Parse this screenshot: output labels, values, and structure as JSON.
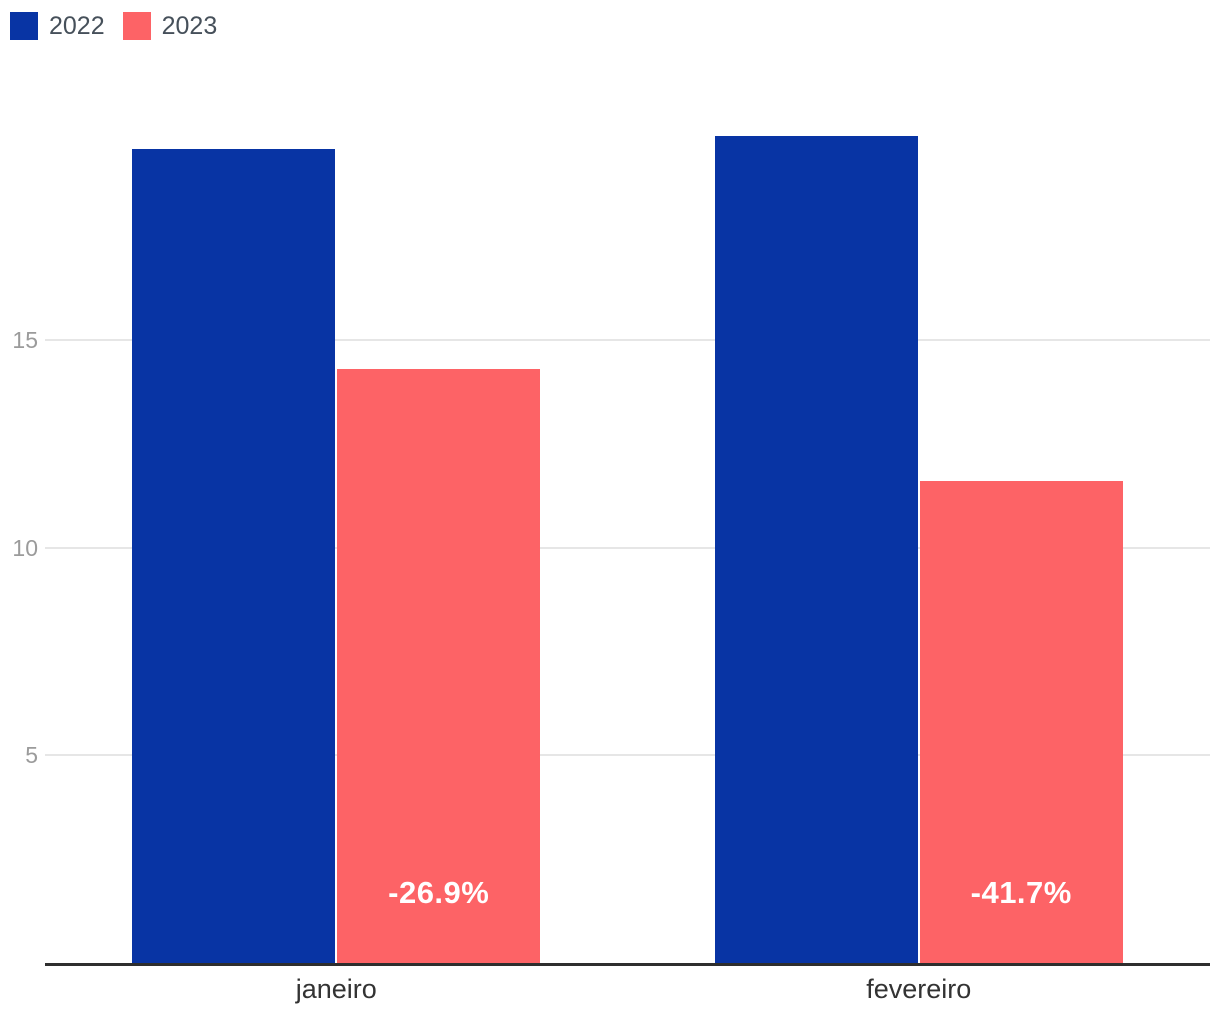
{
  "chart_data": {
    "type": "bar",
    "title": "",
    "xlabel": "",
    "ylabel": "",
    "categories": [
      "janeiro",
      "fevereiro"
    ],
    "series": [
      {
        "name": "2022",
        "color": "#0834a4",
        "values": [
          19.6,
          19.9
        ]
      },
      {
        "name": "2023",
        "color": "#fd6366",
        "values": [
          14.3,
          11.6
        ],
        "bar_labels": [
          "-26.9%",
          "-41.7%"
        ]
      }
    ],
    "yticks": [
      5,
      10,
      15
    ],
    "ylim": [
      0,
      20.1
    ],
    "grid": true,
    "legend_position": "top-left"
  },
  "colors": {
    "background": "#ffffff",
    "grid": "#e6e6e6",
    "axis": "#2e2e2e",
    "tick_text": "#9b9b9b",
    "category_text": "#333333",
    "legend_text": "#46505a",
    "bar_label_text": "#ffffff"
  }
}
